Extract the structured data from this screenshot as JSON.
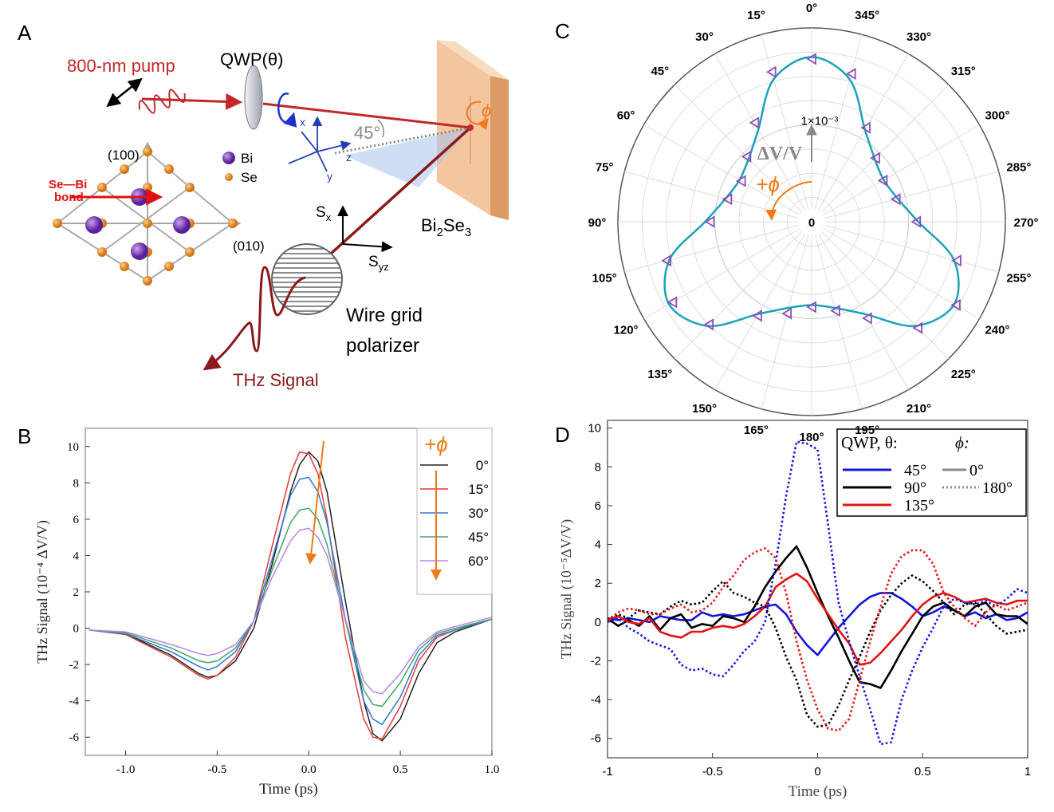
{
  "panel_labels": [
    "A",
    "B",
    "C",
    "D"
  ],
  "diagram": {
    "pump": "800-nm pump",
    "qwp": "QWP(θ)",
    "phi": "ϕ",
    "angle": "45°",
    "axes": [
      "x",
      "y",
      "z"
    ],
    "crystal": {
      "dir1": "(100)",
      "dir2": "(010)",
      "bond": [
        "Se—Bi",
        "bond"
      ],
      "legend": [
        "Bi",
        "Se"
      ]
    },
    "sample": {
      "base": [
        "Bi",
        "Se"
      ],
      "sub": [
        "2",
        "3"
      ]
    },
    "detector_axes": [
      {
        "base": "S",
        "sub": "x"
      },
      {
        "base": "S",
        "sub": "yz"
      }
    ],
    "polarizer": [
      "Wire grid",
      "polarizer"
    ],
    "signal": "THz Signal"
  },
  "chart_data": [
    {
      "type": "line",
      "xlabel": "Time (ps)",
      "ylabel": "THz Signal (10⁻⁴ ΔV/V)",
      "legend_title": "+ϕ",
      "legend": "upper right",
      "xlim": [
        -1.22,
        1.0
      ],
      "ylim": [
        -7,
        11
      ],
      "xticks": [
        {
          "value": -1,
          "label": "-1.0"
        },
        -0.5,
        {
          "value": 0,
          "label": "0.0"
        },
        0.5,
        {
          "value": 1,
          "label": "1.0"
        }
      ],
      "yticks": [
        -6,
        -4,
        -2,
        0,
        2,
        4,
        6,
        8,
        10
      ],
      "x": [
        -1.2,
        -1.0,
        -0.75,
        -0.6,
        -0.55,
        -0.5,
        -0.4,
        -0.3,
        -0.2,
        -0.1,
        -0.05,
        0,
        0.05,
        0.1,
        0.2,
        0.3,
        0.35,
        0.4,
        0.5,
        0.6,
        0.7,
        0.8,
        1.0
      ],
      "series": [
        {
          "name": "0°",
          "color": "#222222",
          "values": [
            -0.1,
            -0.3,
            -1.5,
            -2.5,
            -2.7,
            -2.6,
            -1.8,
            0.0,
            3.5,
            7.5,
            9.0,
            9.7,
            9.2,
            7.5,
            1.5,
            -4.0,
            -5.8,
            -6.2,
            -5.0,
            -2.5,
            -0.8,
            -0.2,
            0.5
          ]
        },
        {
          "name": "15°",
          "color": "#e53935",
          "values": [
            -0.1,
            -0.35,
            -1.6,
            -2.6,
            -2.8,
            -2.6,
            -1.6,
            0.4,
            4.5,
            8.5,
            9.7,
            9.6,
            8.5,
            6.0,
            -0.5,
            -5.0,
            -6.0,
            -6.1,
            -4.3,
            -1.8,
            -0.5,
            -0.1,
            0.5
          ]
        },
        {
          "name": "30°",
          "color": "#2f78d0",
          "values": [
            -0.1,
            -0.3,
            -1.3,
            -2.1,
            -2.3,
            -2.1,
            -1.3,
            0.4,
            3.8,
            7.3,
            8.2,
            8.3,
            7.5,
            5.8,
            0.5,
            -4.0,
            -5.0,
            -5.3,
            -3.8,
            -1.5,
            -0.4,
            -0.1,
            0.5
          ]
        },
        {
          "name": "45°",
          "color": "#3fa565",
          "values": [
            -0.1,
            -0.25,
            -1.1,
            -1.8,
            -1.9,
            -1.8,
            -1.1,
            0.4,
            3.2,
            5.8,
            6.5,
            6.6,
            6.0,
            4.6,
            0.4,
            -3.4,
            -4.2,
            -4.3,
            -3.0,
            -1.2,
            -0.3,
            0.0,
            0.5
          ]
        },
        {
          "name": "60°",
          "color": "#b685ec",
          "values": [
            -0.1,
            -0.2,
            -0.9,
            -1.4,
            -1.5,
            -1.4,
            -0.9,
            0.4,
            2.8,
            4.8,
            5.4,
            5.5,
            5.0,
            4.0,
            0.5,
            -2.9,
            -3.5,
            -3.6,
            -2.5,
            -1.0,
            -0.2,
            0.1,
            0.6
          ]
        }
      ]
    },
    {
      "type": "polar",
      "rlabel": "ΔV/V",
      "direction_label": "+ϕ",
      "rlim": [
        0,
        2
      ],
      "rticks": [
        0,
        {
          "value": 1,
          "label": "1×10⁻³"
        }
      ],
      "angle_ticks": [
        {
          "value": 0,
          "label": "0°"
        },
        {
          "value": 15,
          "label": "15°"
        },
        {
          "value": 30,
          "label": "30°"
        },
        {
          "value": 45,
          "label": "45°"
        },
        {
          "value": 60,
          "label": "60°"
        },
        {
          "value": 75,
          "label": "75°"
        },
        {
          "value": 90,
          "label": "90°"
        },
        {
          "value": 105,
          "label": "105°"
        },
        {
          "value": 120,
          "label": "120°"
        },
        {
          "value": 135,
          "label": "135°"
        },
        {
          "value": 150,
          "label": "150°"
        },
        {
          "value": 165,
          "label": "165°"
        },
        {
          "value": 180,
          "label": "180°"
        },
        {
          "value": 195,
          "label": "195°"
        },
        {
          "value": 210,
          "label": "210°"
        },
        {
          "value": 225,
          "label": "225°"
        },
        {
          "value": 240,
          "label": "240°"
        },
        {
          "value": 255,
          "label": "255°"
        },
        {
          "value": 270,
          "label": "270°"
        },
        {
          "value": 285,
          "label": "285°"
        },
        {
          "value": 300,
          "label": "300°"
        },
        {
          "value": 315,
          "label": "315°"
        },
        {
          "value": 330,
          "label": "330°"
        },
        {
          "value": 345,
          "label": "345°"
        }
      ],
      "theta": [
        0,
        15,
        30,
        45,
        60,
        75,
        90,
        105,
        120,
        135,
        150,
        165,
        180,
        195,
        210,
        225,
        240,
        255,
        270,
        285,
        300,
        315,
        330,
        345
      ],
      "series": [
        {
          "color": "#1aa3b8",
          "values": [
            1.7,
            1.52,
            1.1,
            0.92,
            0.86,
            0.92,
            1.1,
            1.52,
            1.7,
            1.52,
            1.1,
            0.92,
            0.86,
            0.92,
            1.1,
            1.52,
            1.7,
            1.52,
            1.1,
            0.92,
            0.86,
            0.92,
            1.1,
            1.52
          ]
        },
        {
          "color": "#8d4fb5",
          "marker": "triangle",
          "values": [
            1.68,
            1.6,
            1.18,
            0.95,
            0.84,
            0.9,
            1.05,
            1.55,
            1.66,
            1.5,
            1.12,
            0.98,
            0.88,
            0.95,
            1.15,
            1.55,
            1.72,
            1.55,
            1.08,
            0.9,
            0.85,
            0.93,
            1.12,
            1.58
          ]
        }
      ]
    },
    {
      "type": "line",
      "xlabel": "Time (ps)",
      "ylabel": "THz Signal (10⁻⁵ΔV/V)",
      "legend": {
        "theta_title": "QWP, θ:",
        "phi_title": "ϕ:",
        "theta": [
          {
            "label": "45°",
            "color": "#1414e0"
          },
          {
            "label": "90°",
            "color": "#000000"
          },
          {
            "label": "135°",
            "color": "#e31414"
          }
        ],
        "phi": [
          {
            "label": "0°",
            "dash": false
          },
          {
            "label": "180°",
            "dash": true
          }
        ]
      },
      "xlim": [
        -1,
        1
      ],
      "ylim": [
        -7,
        10.4
      ],
      "xticks": [
        -1,
        -0.5,
        0,
        0.5,
        1
      ],
      "yticks": [
        -6,
        -4,
        -2,
        0,
        2,
        4,
        6,
        8,
        10
      ],
      "x": [
        -1,
        -0.95,
        -0.9,
        -0.85,
        -0.8,
        -0.75,
        -0.7,
        -0.65,
        -0.6,
        -0.55,
        -0.5,
        -0.45,
        -0.4,
        -0.35,
        -0.3,
        -0.25,
        -0.2,
        -0.15,
        -0.1,
        -0.05,
        0,
        0.05,
        0.1,
        0.15,
        0.2,
        0.25,
        0.3,
        0.35,
        0.4,
        0.45,
        0.5,
        0.55,
        0.6,
        0.65,
        0.7,
        0.75,
        0.8,
        0.85,
        0.9,
        0.95,
        1
      ],
      "series": [
        {
          "color": "#1414e0",
          "dash": false,
          "values": [
            0.2,
            0.1,
            0.2,
            0.1,
            0.0,
            0.3,
            0.2,
            0.1,
            0.1,
            0.5,
            0.3,
            0.4,
            0.3,
            0.4,
            0.6,
            0.8,
            0.9,
            0.4,
            -0.5,
            -1.2,
            -1.7,
            -1.0,
            -0.3,
            0.3,
            0.9,
            1.3,
            1.5,
            1.5,
            1.2,
            0.8,
            0.3,
            0.5,
            0.8,
            0.6,
            0.3,
            0.5,
            0.2,
            0.4,
            0.1,
            0.2,
            0.5
          ]
        },
        {
          "color": "#000000",
          "dash": false,
          "values": [
            0.2,
            -0.2,
            0.1,
            -0.2,
            0.3,
            -0.4,
            0.2,
            0.4,
            -0.3,
            -0.1,
            -0.2,
            0.3,
            0.2,
            0.0,
            0.8,
            1.8,
            2.6,
            3.3,
            3.9,
            2.8,
            1.5,
            0.3,
            -0.8,
            -2.0,
            -3.1,
            -3.2,
            -3.4,
            -2.5,
            -1.5,
            -0.6,
            0.3,
            0.8,
            1.0,
            0.6,
            0.3,
            0.8,
            1.0,
            0.4,
            0.3,
            0.3,
            -0.1
          ]
        },
        {
          "color": "#e31414",
          "dash": false,
          "values": [
            0.1,
            0.3,
            0.0,
            -0.1,
            0.2,
            -0.5,
            -0.7,
            -0.8,
            -0.5,
            -0.5,
            -0.3,
            -0.2,
            -0.3,
            -0.1,
            0.3,
            0.8,
            1.8,
            2.2,
            2.5,
            2.1,
            1.2,
            0.4,
            -0.4,
            -1.1,
            -2.2,
            -2.1,
            -1.6,
            -1.0,
            -0.4,
            0.3,
            0.9,
            1.3,
            1.5,
            1.3,
            1.0,
            1.1,
            1.2,
            1.0,
            0.9,
            1.1,
            1.1
          ]
        },
        {
          "color": "#1414e0",
          "dash": true,
          "values": [
            0.0,
            0.2,
            -0.3,
            -0.6,
            -1.0,
            -1.2,
            -1.4,
            -2.2,
            -2.5,
            -2.4,
            -2.7,
            -2.8,
            -2.2,
            -1.5,
            -1.0,
            0.0,
            3.0,
            6.5,
            9.3,
            9.2,
            8.9,
            5.0,
            1.0,
            -1.0,
            -2.8,
            -4.5,
            -6.3,
            -6.2,
            -4.0,
            -2.5,
            -1.3,
            -0.3,
            0.8,
            1.2,
            1.0,
            0.9,
            1.1,
            0.8,
            1.2,
            1.7,
            1.5
          ]
        },
        {
          "color": "#000000",
          "dash": true,
          "values": [
            0.1,
            0.4,
            0.2,
            0.6,
            0.5,
            0.4,
            0.8,
            1.1,
            0.9,
            1.0,
            1.6,
            2.1,
            1.5,
            1.3,
            1.0,
            0.8,
            -0.3,
            -1.8,
            -3.0,
            -4.8,
            -5.4,
            -5.3,
            -4.3,
            -3.0,
            -1.8,
            -0.5,
            0.6,
            1.4,
            2.0,
            2.4,
            2.1,
            1.6,
            1.0,
            0.4,
            0.9,
            1.0,
            0.4,
            -0.2,
            -0.6,
            -0.5,
            -0.4
          ]
        },
        {
          "color": "#e31414",
          "dash": true,
          "values": [
            0.1,
            0.5,
            0.7,
            0.6,
            0.4,
            0.4,
            0.7,
            0.9,
            0.5,
            0.6,
            1.0,
            1.8,
            2.4,
            3.2,
            3.6,
            3.8,
            3.3,
            1.5,
            -1.0,
            -3.0,
            -4.5,
            -5.5,
            -5.6,
            -5.0,
            -3.0,
            -1.0,
            0.8,
            2.5,
            3.4,
            3.7,
            3.7,
            3.0,
            1.5,
            0.8,
            0.2,
            -0.2,
            0.5,
            0.9,
            0.6,
            0.8,
            1.0
          ]
        }
      ]
    }
  ]
}
